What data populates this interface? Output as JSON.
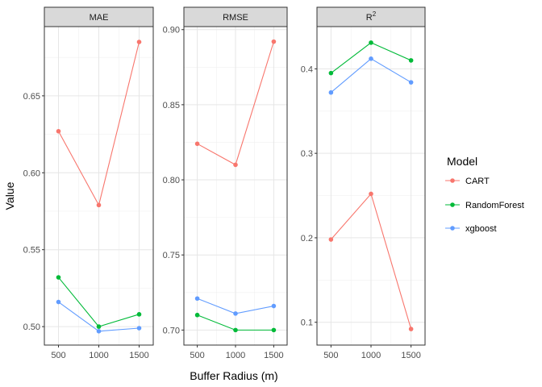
{
  "chart_data": {
    "type": "line",
    "x": [
      500,
      1000,
      1500
    ],
    "xlabel": "Buffer Radius (m)",
    "ylabel": "Value",
    "grid": true,
    "legend": {
      "title": "Model",
      "placement": "right",
      "entries": [
        "CART",
        "RandomForest",
        "xgboost"
      ]
    },
    "colors": {
      "CART": "#F8766D",
      "RandomForest": "#00BA38",
      "xgboost": "#619CFF"
    },
    "panels": [
      {
        "title": "MAE",
        "ylim": [
          0.488,
          0.695
        ],
        "yticks": [
          0.5,
          0.55,
          0.6,
          0.65
        ],
        "ytick_labels": [
          "0.50",
          "0.55",
          "0.60",
          "0.65"
        ],
        "series": [
          {
            "name": "CART",
            "values": [
              0.627,
              0.579,
              0.685
            ]
          },
          {
            "name": "RandomForest",
            "values": [
              0.532,
              0.5,
              0.508
            ]
          },
          {
            "name": "xgboost",
            "values": [
              0.516,
              0.497,
              0.499
            ]
          }
        ]
      },
      {
        "title": "RMSE",
        "ylim": [
          0.69,
          0.902
        ],
        "yticks": [
          0.7,
          0.75,
          0.8,
          0.85,
          0.9
        ],
        "ytick_labels": [
          "0.70",
          "0.75",
          "0.80",
          "0.85",
          "0.90"
        ],
        "series": [
          {
            "name": "CART",
            "values": [
              0.824,
              0.81,
              0.892
            ]
          },
          {
            "name": "RandomForest",
            "values": [
              0.71,
              0.7,
              0.7
            ]
          },
          {
            "name": "xgboost",
            "values": [
              0.721,
              0.711,
              0.716
            ]
          }
        ]
      },
      {
        "title": "R",
        "title_superscript": "2",
        "ylim": [
          0.073,
          0.45
        ],
        "yticks": [
          0.1,
          0.2,
          0.3,
          0.4
        ],
        "ytick_labels": [
          "0.1",
          "0.2",
          "0.3",
          "0.4"
        ],
        "series": [
          {
            "name": "CART",
            "values": [
              0.198,
              0.252,
              0.092
            ]
          },
          {
            "name": "RandomForest",
            "values": [
              0.395,
              0.431,
              0.41
            ]
          },
          {
            "name": "xgboost",
            "values": [
              0.372,
              0.412,
              0.384
            ]
          }
        ]
      }
    ]
  }
}
